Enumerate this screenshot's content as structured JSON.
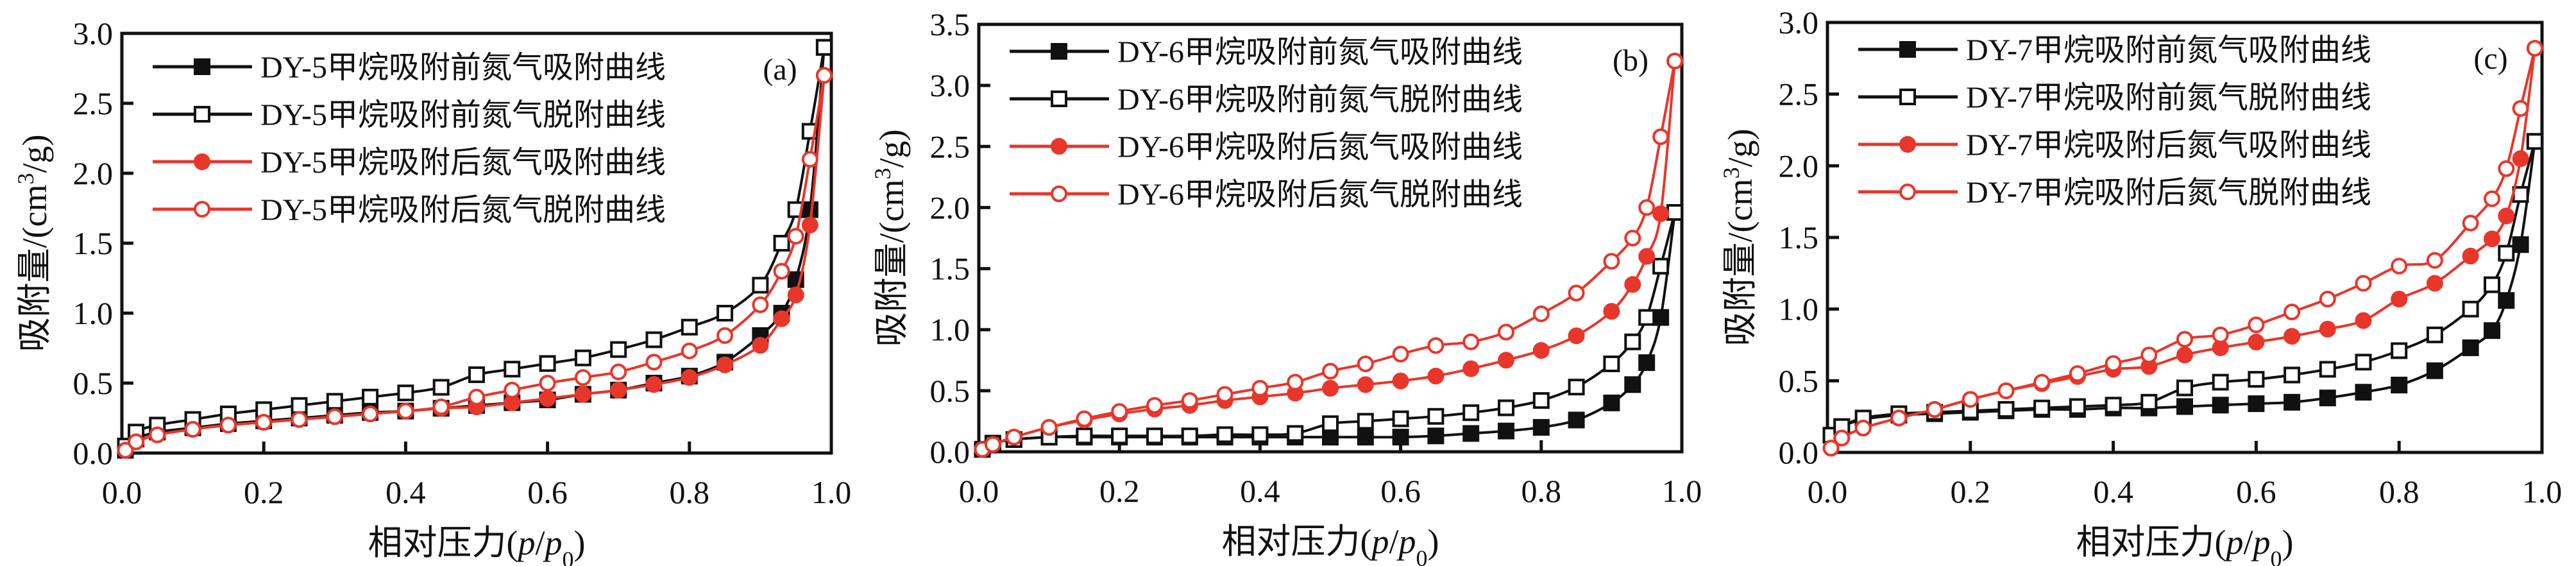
{
  "chart_data": [
    {
      "type": "line",
      "panel_label": "(a)",
      "xlabel": {
        "main": "相对压力(",
        "p1": "p",
        "slash": "/",
        "p2": "p",
        "sub": "0",
        "close": ")"
      },
      "ylabel": {
        "main": "吸附量/(cm",
        "sup": "3",
        "tail": "/g)"
      },
      "xlim": [
        0,
        1.0
      ],
      "ylim": [
        0,
        3.0
      ],
      "xticks": [
        "0.0",
        "0.2",
        "0.4",
        "0.6",
        "0.8",
        "1.0"
      ],
      "yticks": [
        "0.0",
        "0.5",
        "1.0",
        "1.5",
        "2.0",
        "2.5",
        "3.0"
      ],
      "legend_position": "top-left",
      "x": [
        0.005,
        0.02,
        0.05,
        0.1,
        0.15,
        0.2,
        0.25,
        0.3,
        0.35,
        0.4,
        0.45,
        0.5,
        0.55,
        0.6,
        0.65,
        0.7,
        0.75,
        0.8,
        0.85,
        0.9,
        0.93,
        0.95,
        0.97,
        0.99
      ],
      "series": [
        {
          "name": "DY-5甲烷吸附前氮气吸附曲线",
          "color": "#111111",
          "marker": "square-filled",
          "values": [
            0.02,
            0.1,
            0.15,
            0.18,
            0.21,
            0.23,
            0.25,
            0.27,
            0.29,
            0.3,
            0.32,
            0.34,
            0.36,
            0.38,
            0.42,
            0.45,
            0.5,
            0.55,
            0.65,
            0.84,
            1.0,
            1.24,
            1.74,
            2.9
          ]
        },
        {
          "name": "DY-5甲烷吸附前氮气脱附曲线",
          "color": "#111111",
          "marker": "square-open",
          "values": [
            0.05,
            0.15,
            0.2,
            0.24,
            0.28,
            0.31,
            0.34,
            0.37,
            0.4,
            0.43,
            0.47,
            0.56,
            0.6,
            0.64,
            0.68,
            0.74,
            0.81,
            0.9,
            1.0,
            1.2,
            1.5,
            1.74,
            2.3,
            2.9
          ]
        },
        {
          "name": "DY-5甲烷吸附后氮气吸附曲线",
          "color": "#e8362b",
          "marker": "circle-filled",
          "values": [
            0.02,
            0.08,
            0.13,
            0.17,
            0.2,
            0.22,
            0.24,
            0.26,
            0.28,
            0.3,
            0.32,
            0.33,
            0.36,
            0.39,
            0.42,
            0.45,
            0.49,
            0.54,
            0.63,
            0.77,
            0.96,
            1.13,
            1.63,
            2.7
          ]
        },
        {
          "name": "DY-5甲烷吸附后氮气脱附曲线",
          "color": "#e8362b",
          "marker": "circle-open",
          "values": [
            0.02,
            0.08,
            0.13,
            0.17,
            0.2,
            0.22,
            0.24,
            0.26,
            0.28,
            0.3,
            0.33,
            0.4,
            0.45,
            0.5,
            0.54,
            0.58,
            0.65,
            0.73,
            0.84,
            1.06,
            1.3,
            1.55,
            2.1,
            2.7
          ]
        }
      ]
    },
    {
      "type": "line",
      "panel_label": "(b)",
      "xlabel": {
        "main": "相对压力(",
        "p1": "p",
        "slash": "/",
        "p2": "p",
        "sub": "0",
        "close": ")"
      },
      "ylabel": {
        "main": "吸附量/(cm",
        "sup": "3",
        "tail": "/g)"
      },
      "xlim": [
        0,
        1.0
      ],
      "ylim": [
        0,
        3.5
      ],
      "xticks": [
        "0.0",
        "0.2",
        "0.4",
        "0.6",
        "0.8",
        "1.0"
      ],
      "yticks": [
        "0.0",
        "0.5",
        "1.0",
        "1.5",
        "2.0",
        "2.5",
        "3.0",
        "3.5"
      ],
      "legend_position": "top-left",
      "x": [
        0.005,
        0.02,
        0.05,
        0.1,
        0.15,
        0.2,
        0.25,
        0.3,
        0.35,
        0.4,
        0.45,
        0.5,
        0.55,
        0.6,
        0.65,
        0.7,
        0.75,
        0.8,
        0.85,
        0.9,
        0.93,
        0.95,
        0.97,
        0.99
      ],
      "series": [
        {
          "name": "DY-6甲烷吸附前氮气吸附曲线",
          "color": "#111111",
          "marker": "square-filled",
          "values": [
            0.02,
            0.07,
            0.1,
            0.12,
            0.12,
            0.12,
            0.12,
            0.12,
            0.12,
            0.12,
            0.12,
            0.12,
            0.12,
            0.12,
            0.13,
            0.15,
            0.17,
            0.2,
            0.26,
            0.4,
            0.55,
            0.73,
            1.1,
            1.96
          ]
        },
        {
          "name": "DY-6甲烷吸附前氮气脱附曲线",
          "color": "#111111",
          "marker": "square-open",
          "values": [
            0.02,
            0.07,
            0.1,
            0.12,
            0.13,
            0.13,
            0.13,
            0.13,
            0.14,
            0.14,
            0.15,
            0.23,
            0.25,
            0.27,
            0.29,
            0.32,
            0.36,
            0.42,
            0.53,
            0.72,
            0.9,
            1.1,
            1.52,
            1.96
          ]
        },
        {
          "name": "DY-6甲烷吸附后氮气吸附曲线",
          "color": "#e8362b",
          "marker": "circle-filled",
          "values": [
            0.02,
            0.06,
            0.12,
            0.2,
            0.26,
            0.31,
            0.35,
            0.38,
            0.42,
            0.45,
            0.48,
            0.52,
            0.55,
            0.58,
            0.62,
            0.68,
            0.75,
            0.83,
            0.95,
            1.15,
            1.37,
            1.6,
            1.95,
            3.2
          ]
        },
        {
          "name": "DY-6甲烷吸附后氮气脱附曲线",
          "color": "#e8362b",
          "marker": "circle-open",
          "values": [
            0.02,
            0.06,
            0.12,
            0.2,
            0.27,
            0.33,
            0.38,
            0.42,
            0.47,
            0.52,
            0.57,
            0.66,
            0.72,
            0.8,
            0.87,
            0.9,
            0.98,
            1.13,
            1.3,
            1.56,
            1.75,
            2.0,
            2.58,
            3.2
          ]
        }
      ]
    },
    {
      "type": "line",
      "panel_label": "(c)",
      "xlabel": {
        "main": "相对压力(",
        "p1": "p",
        "slash": "/",
        "p2": "p",
        "sub": "0",
        "close": ")"
      },
      "ylabel": {
        "main": "吸附量/(cm",
        "sup": "3",
        "tail": "/g)"
      },
      "xlim": [
        0,
        1.0
      ],
      "ylim": [
        0,
        3.0
      ],
      "xticks": [
        "0.0",
        "0.2",
        "0.4",
        "0.6",
        "0.8",
        "1.0"
      ],
      "yticks": [
        "0.0",
        "0.5",
        "1.0",
        "1.5",
        "2.0",
        "2.5",
        "3.0"
      ],
      "legend_position": "top-left",
      "x": [
        0.005,
        0.02,
        0.05,
        0.1,
        0.15,
        0.2,
        0.25,
        0.3,
        0.35,
        0.4,
        0.45,
        0.5,
        0.55,
        0.6,
        0.65,
        0.7,
        0.75,
        0.8,
        0.85,
        0.9,
        0.93,
        0.95,
        0.97,
        0.99
      ],
      "series": [
        {
          "name": "DY-7甲烷吸附前氮气吸附曲线",
          "color": "#111111",
          "marker": "square-filled",
          "values": [
            0.12,
            0.18,
            0.23,
            0.26,
            0.27,
            0.28,
            0.29,
            0.3,
            0.3,
            0.31,
            0.31,
            0.32,
            0.33,
            0.34,
            0.35,
            0.38,
            0.42,
            0.47,
            0.57,
            0.73,
            0.85,
            1.06,
            1.45,
            2.17
          ]
        },
        {
          "name": "DY-7甲烷吸附前氮气脱附曲线",
          "color": "#111111",
          "marker": "square-open",
          "values": [
            0.12,
            0.18,
            0.24,
            0.27,
            0.28,
            0.29,
            0.3,
            0.31,
            0.32,
            0.33,
            0.35,
            0.45,
            0.49,
            0.51,
            0.54,
            0.58,
            0.63,
            0.71,
            0.82,
            1.0,
            1.17,
            1.39,
            1.8,
            2.17
          ]
        },
        {
          "name": "DY-7甲烷吸附后氮气吸附曲线",
          "color": "#e8362b",
          "marker": "circle-filled",
          "values": [
            0.03,
            0.1,
            0.17,
            0.24,
            0.3,
            0.37,
            0.43,
            0.48,
            0.53,
            0.58,
            0.6,
            0.68,
            0.73,
            0.77,
            0.81,
            0.86,
            0.92,
            1.07,
            1.18,
            1.37,
            1.49,
            1.65,
            2.05,
            2.82
          ]
        },
        {
          "name": "DY-7甲烷吸附后氮气脱附曲线",
          "color": "#e8362b",
          "marker": "circle-open",
          "values": [
            0.03,
            0.1,
            0.17,
            0.24,
            0.3,
            0.37,
            0.43,
            0.49,
            0.55,
            0.62,
            0.68,
            0.79,
            0.82,
            0.89,
            0.98,
            1.07,
            1.18,
            1.3,
            1.34,
            1.6,
            1.77,
            1.98,
            2.4,
            2.82
          ]
        }
      ]
    }
  ]
}
